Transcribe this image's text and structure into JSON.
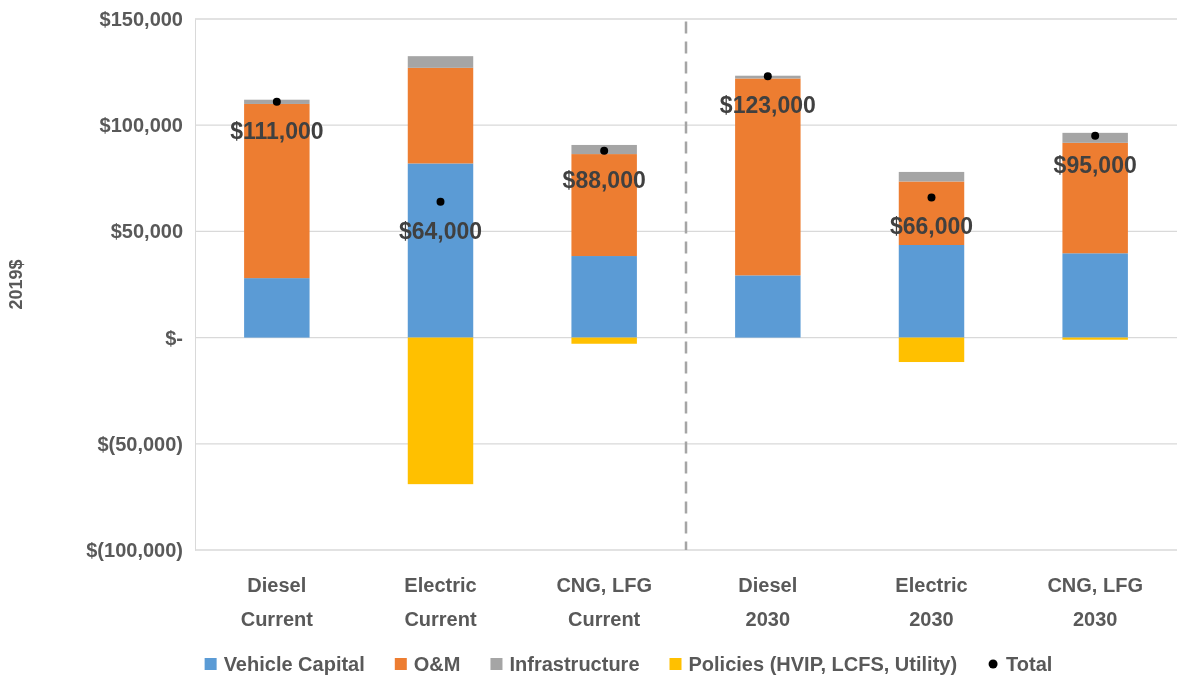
{
  "chart_data": {
    "type": "bar",
    "stacked": true,
    "ylabel": "2019$",
    "categories": [
      "Diesel Current",
      "Electric Current",
      "CNG, LFG Current",
      "Diesel 2030",
      "Electric 2030",
      "CNG, LFG 2030"
    ],
    "series": [
      {
        "name": "Vehicle Capital",
        "color": "#5b9bd5",
        "values": [
          28000,
          82000,
          38400,
          29300,
          43600,
          39700
        ]
      },
      {
        "name": "O&M",
        "color": "#ed7d31",
        "values": [
          82000,
          45000,
          48000,
          92700,
          29900,
          52000
        ]
      },
      {
        "name": "Infrastructure",
        "color": "#a5a5a5",
        "values": [
          2000,
          5500,
          4300,
          1300,
          4500,
          4700
        ]
      },
      {
        "name": "Policies (HVIP, LCFS, Utility)",
        "color": "#ffc000",
        "values": [
          0,
          -69000,
          -2900,
          0,
          -11500,
          -1000
        ]
      },
      {
        "name": "Total",
        "type": "scatter",
        "marker": "circle",
        "color": "#000000",
        "values": [
          111000,
          64000,
          88000,
          123000,
          66000,
          95000
        ],
        "value_labels": [
          "$111,000",
          "$64,000",
          "$88,000",
          "$123,000",
          "$66,000",
          "$95,000"
        ]
      }
    ],
    "ylim": [
      -100000,
      150000
    ],
    "yticks": [
      {
        "value": -100000,
        "label": "$(100,000)"
      },
      {
        "value": -50000,
        "label": "$(50,000)"
      },
      {
        "value": 0,
        "label": "$-"
      },
      {
        "value": 50000,
        "label": "$50,000"
      },
      {
        "value": 100000,
        "label": "$100,000"
      },
      {
        "value": 150000,
        "label": "$150,000"
      }
    ],
    "grid": "y",
    "legend": "bottom"
  }
}
